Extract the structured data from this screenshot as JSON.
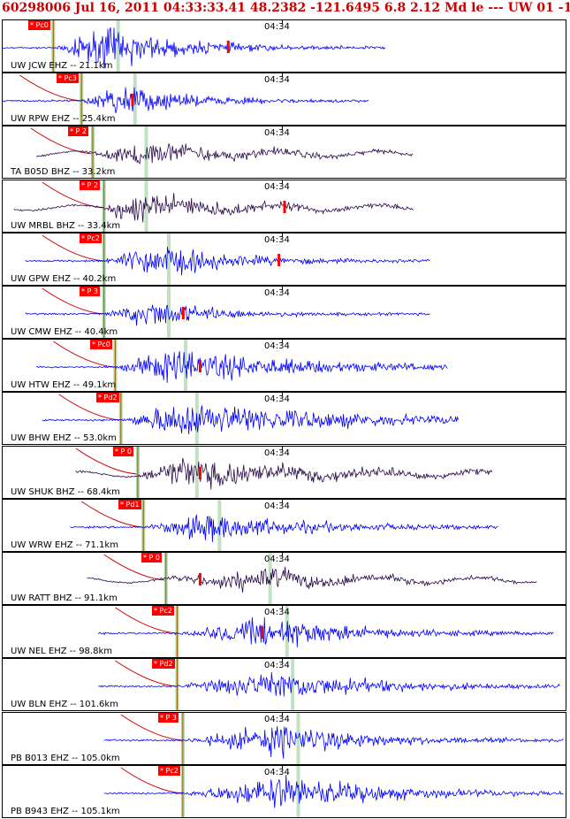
{
  "header": {
    "text": "60298006 Jul 16, 2011 04:33:33.41   48.2382 -121.6495  6.8 2.12 Md le --- UW 01  -1"
  },
  "colors": {
    "blue_trace": "#0000ff",
    "dark_trace": "#2a0a4a",
    "pick": "#ff0000",
    "pick_line": "#99cc99",
    "travel_curve": "#cc0000"
  },
  "panels": [
    {
      "label": "UW JCW EHZ -- 21.1km",
      "time": "04:34",
      "pick": "Pc0",
      "trace": "blue",
      "start": 0.0,
      "end": 0.68,
      "pickx": 0.09,
      "peak": 0.18,
      "amp": 28,
      "coda": 0.25,
      "smark": 0.4
    },
    {
      "label": "UW RPW EHZ -- 25.4km",
      "time": "04:34",
      "pick": "Pc3",
      "trace": "blue",
      "start": 0.0,
      "end": 0.65,
      "pickx": 0.14,
      "peak": 0.21,
      "amp": 22,
      "coda": 0.22,
      "smark": 0.23
    },
    {
      "label": "TA B05D BHZ -- 33.2km",
      "time": "04:34",
      "pick": "P 2",
      "trace": "dark",
      "start": 0.06,
      "end": 0.73,
      "pickx": 0.16,
      "peak": 0.23,
      "amp": 18,
      "coda": 0.35,
      "smark": -1
    },
    {
      "label": "UW MRBL BHZ -- 33.4km",
      "time": "04:34",
      "pick": "P 2",
      "trace": "dark",
      "start": 0.02,
      "end": 0.73,
      "pickx": 0.18,
      "peak": 0.23,
      "amp": 20,
      "coda": 0.35,
      "smark": 0.5
    },
    {
      "label": "UW GPW EHZ -- 40.2km",
      "time": "04:34",
      "pick": "Pc2",
      "trace": "blue",
      "start": 0.04,
      "end": 0.76,
      "pickx": 0.18,
      "peak": 0.27,
      "amp": 24,
      "coda": 0.25,
      "smark": 0.49
    },
    {
      "label": "UW CMW EHZ -- 40.4km",
      "time": "04:34",
      "pick": "P 3",
      "trace": "blue",
      "start": 0.04,
      "end": 0.76,
      "pickx": 0.18,
      "peak": 0.27,
      "amp": 20,
      "coda": 0.2,
      "smark": 0.32
    },
    {
      "label": "UW HTW EHZ -- 49.1km",
      "time": "04:34",
      "pick": "Pc0",
      "trace": "blue",
      "start": 0.06,
      "end": 0.79,
      "pickx": 0.2,
      "peak": 0.3,
      "amp": 24,
      "coda": 0.45,
      "smark": 0.35
    },
    {
      "label": "UW BHW EHZ -- 53.0km",
      "time": "04:34",
      "pick": "Pd2",
      "trace": "blue",
      "start": 0.07,
      "end": 0.81,
      "pickx": 0.21,
      "peak": 0.32,
      "amp": 26,
      "coda": 0.55,
      "smark": -1
    },
    {
      "label": "UW SHUK BHZ -- 68.4km",
      "time": "04:34",
      "pick": "P 0",
      "trace": "dark",
      "start": 0.13,
      "end": 0.87,
      "pickx": 0.24,
      "peak": 0.32,
      "amp": 22,
      "coda": 0.5,
      "smark": 0.35
    },
    {
      "label": "UW WRW EHZ -- 71.1km",
      "time": "04:34",
      "pick": "Pd1",
      "trace": "blue",
      "start": 0.12,
      "end": 0.88,
      "pickx": 0.25,
      "peak": 0.36,
      "amp": 20,
      "coda": 0.35,
      "smark": -1
    },
    {
      "label": "UW RATT BHZ -- 91.1km",
      "time": "04:34",
      "pick": "P 0",
      "trace": "dark",
      "start": 0.15,
      "end": 0.95,
      "pickx": 0.29,
      "peak": 0.45,
      "amp": 16,
      "coda": 0.35,
      "smark": 0.35
    },
    {
      "label": "UW NEL EHZ -- 98.8km",
      "time": "04:34",
      "pick": "Pc2",
      "trace": "blue",
      "start": 0.17,
      "end": 0.98,
      "pickx": 0.31,
      "peak": 0.48,
      "amp": 22,
      "coda": 0.3,
      "smark": 0.46
    },
    {
      "label": "UW BLN EHZ -- 101.6km",
      "time": "04:34",
      "pick": "Pd2",
      "trace": "blue",
      "start": 0.17,
      "end": 0.99,
      "pickx": 0.31,
      "peak": 0.49,
      "amp": 20,
      "coda": 0.35,
      "smark": -1
    },
    {
      "label": "PB B013 EHZ -- 105.0km",
      "time": "04:34",
      "pick": "P 3",
      "trace": "blue",
      "start": 0.18,
      "end": 1.0,
      "pickx": 0.32,
      "peak": 0.5,
      "amp": 22,
      "coda": 0.3,
      "smark": -1
    },
    {
      "label": "PB B943 EHZ -- 105.1km",
      "time": "04:34",
      "pick": "Pc2",
      "trace": "blue",
      "start": 0.18,
      "end": 1.0,
      "pickx": 0.32,
      "peak": 0.5,
      "amp": 24,
      "coda": 0.35,
      "smark": -1
    }
  ]
}
